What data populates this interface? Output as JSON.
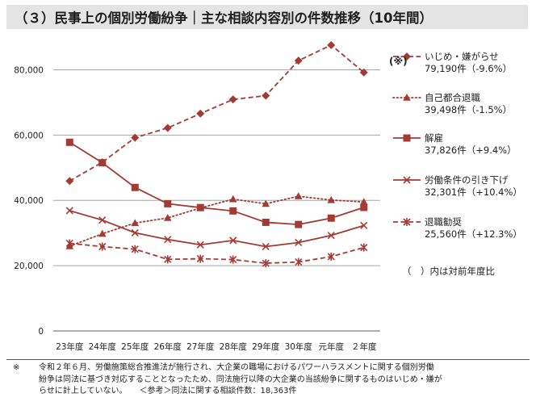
{
  "title": "（３）民事上の個別労働紛争｜主な相談内容別の件数推移（10年間）",
  "chart_data": {
    "type": "line",
    "categories": [
      "23年度",
      "24年度",
      "25年度",
      "26年度",
      "27年度",
      "28年度",
      "29年度",
      "30年度",
      "元年度",
      "２年度"
    ],
    "ylim": [
      0,
      90000
    ],
    "yticks": [
      0,
      20000,
      40000,
      60000,
      80000
    ],
    "ytick_labels": [
      "0",
      "20,000",
      "40,000",
      "60,000",
      "80,000"
    ],
    "series": [
      {
        "name": "いじめ・嫌がらせ",
        "stat": "79,190件（-9.6%）",
        "color": "#a33b35",
        "marker": "diamond",
        "dash": "dashed",
        "values": [
          45939,
          51670,
          59197,
          62191,
          66566,
          70917,
          72067,
          82797,
          87570,
          79190
        ]
      },
      {
        "name": "自己都合退職",
        "stat": "39,498件（-1.5%）",
        "color": "#a33b35",
        "marker": "triangle",
        "dash": "dotted",
        "values": [
          25966,
          29763,
          33049,
          34626,
          37648,
          40364,
          38954,
          41258,
          40095,
          39498
        ]
      },
      {
        "name": "解雇",
        "stat": "37,826件（+9.4%）",
        "color": "#a33b35",
        "marker": "square",
        "dash": "solid",
        "values": [
          57785,
          51515,
          43956,
          38966,
          37787,
          36760,
          33269,
          32614,
          34561,
          37826
        ]
      },
      {
        "name": "労働条件の引き下げ",
        "stat": "32,301件（+10.4%）",
        "color": "#a33b35",
        "marker": "x",
        "dash": "solid",
        "values": [
          36849,
          33955,
          30067,
          28015,
          26392,
          27723,
          25841,
          27082,
          29258,
          32301
        ]
      },
      {
        "name": "退職勧奨",
        "stat": "25,560件（+12.3%）",
        "color": "#a33b35",
        "marker": "asterisk",
        "dash": "dashed",
        "values": [
          26828,
          25838,
          25041,
          21928,
          22110,
          21861,
          20736,
          21125,
          22761,
          25560
        ]
      }
    ],
    "annotation": "(※)",
    "legend_note": "（　）内は対前年度比"
  },
  "footnote": {
    "mark": "※",
    "line1": "令和２年６月、労働施策総合推進法が施行され、大企業の職場におけるパワーハラスメントに関する個別労働",
    "line2": "紛争は同法に基づき対応することとなったため、同法施行以降の大企業の当該紛争に関するものはいじめ・嫌が",
    "line3": "らせに計上していない。　　＜参考＞同法に関する相談件数：18,363件"
  }
}
